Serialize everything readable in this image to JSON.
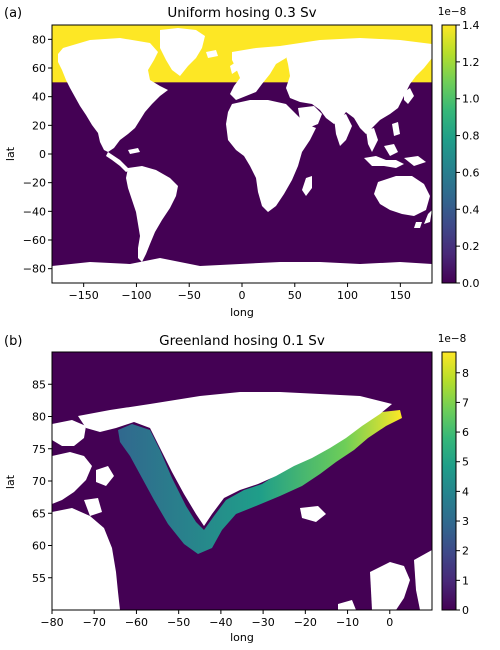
{
  "colors": {
    "background": "#ffffff",
    "land": "#ffffff",
    "viridis": [
      "#440154",
      "#482878",
      "#3e4989",
      "#31688e",
      "#26828e",
      "#1f9e89",
      "#35b779",
      "#6ece58",
      "#b5de2b",
      "#fde725"
    ]
  },
  "chart_data": [
    {
      "type": "heatmap",
      "panel_label": "(a)",
      "title": "Uniform hosing 0.3 Sv",
      "xlabel": "long",
      "ylabel": "lat",
      "xlim": [
        -180,
        180
      ],
      "ylim": [
        -90,
        90
      ],
      "xticks": [
        -150,
        -100,
        -50,
        0,
        50,
        100,
        150
      ],
      "yticks": [
        -80,
        -60,
        -40,
        -20,
        0,
        20,
        40,
        60,
        80
      ],
      "colorbar": {
        "min": 0,
        "max": 1.4,
        "ticks": [
          "0.0",
          "0.2",
          "0.4",
          "0.6",
          "0.8",
          "1.0",
          "1.2",
          "1.4"
        ],
        "tick_values": [
          0,
          0.2,
          0.4,
          0.6,
          0.8,
          1.0,
          1.2,
          1.4
        ],
        "scale_label": "1e−8"
      },
      "field": {
        "description_levels": [
          {
            "region": "ocean north of 50N",
            "value": 1.4
          },
          {
            "region": "ocean south of 50N",
            "value": 0.0
          }
        ],
        "high_value_lat_min": 50,
        "high_value": 1.4,
        "low_value": 0.0
      }
    },
    {
      "type": "heatmap",
      "panel_label": "(b)",
      "title": "Greenland hosing 0.1 Sv",
      "xlabel": "long",
      "ylabel": "lat",
      "xlim": [
        -80,
        10
      ],
      "ylim": [
        50,
        90
      ],
      "xticks": [
        -80,
        -70,
        -60,
        -50,
        -40,
        -30,
        -20,
        -10,
        0
      ],
      "yticks": [
        55,
        60,
        65,
        70,
        75,
        80,
        85
      ],
      "colorbar": {
        "min": 0,
        "max": 8.7,
        "ticks": [
          "0",
          "1",
          "2",
          "3",
          "4",
          "5",
          "6",
          "7",
          "8"
        ],
        "tick_values": [
          0,
          1,
          2,
          3,
          4,
          5,
          6,
          7,
          8
        ],
        "scale_label": "1e−8"
      },
      "field": {
        "coastal_band_max": 8.7,
        "background_value": 0
      }
    }
  ]
}
